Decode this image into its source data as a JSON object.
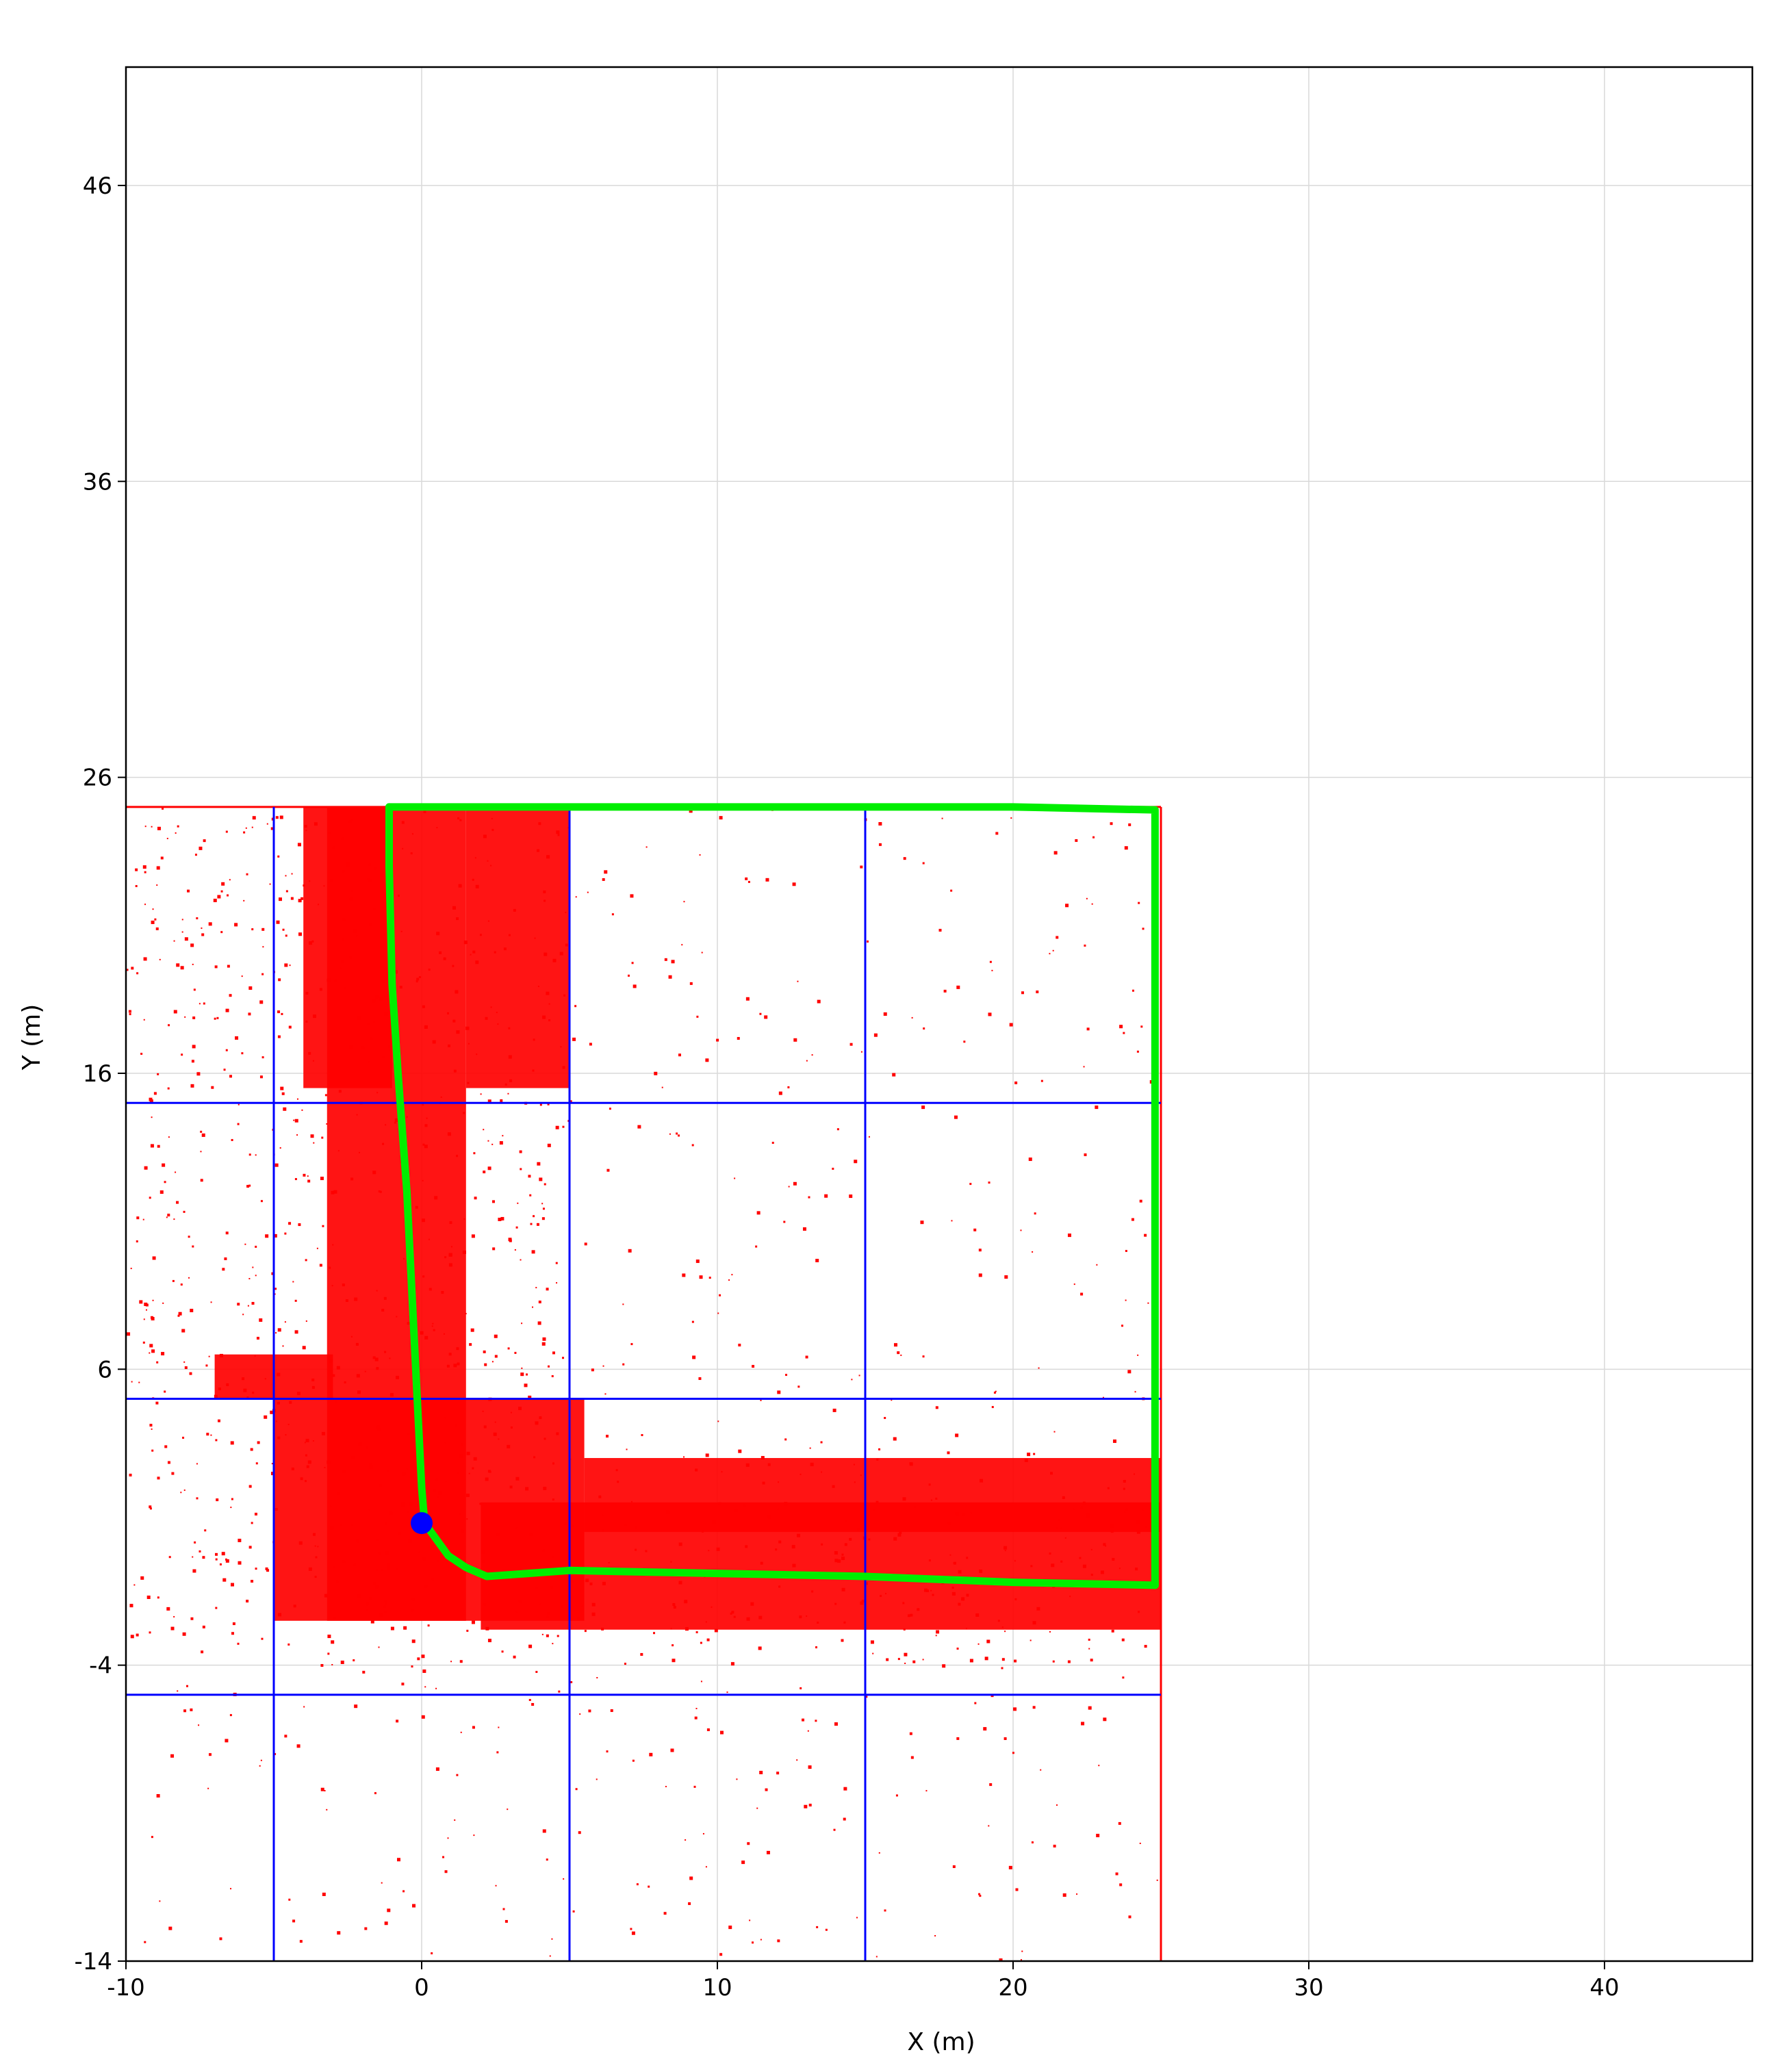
{
  "chart_data": {
    "type": "scatter",
    "title": "",
    "xlabel": "X (m)",
    "ylabel": "Y (m)",
    "xlim": [
      -10,
      45
    ],
    "ylim": [
      -14,
      50
    ],
    "xticks": [
      -10,
      0,
      10,
      20,
      30,
      40
    ],
    "yticks": [
      -14,
      -4,
      6,
      16,
      26,
      36,
      46
    ],
    "grid": true,
    "colors": {
      "obstacle": "#ff0000",
      "trajectory": "#00ee00",
      "tile_grid": "#0000ff",
      "robot": "#0000ff",
      "background_grid": "#d9d9d9"
    },
    "tile_grid_lines": {
      "x": [
        -5,
        5,
        15
      ],
      "y": [
        -5,
        5,
        15
      ],
      "x_extent": [
        -10,
        25
      ],
      "y_extent": [
        -14,
        25
      ]
    },
    "obstacle_regions": [
      {
        "x": [
          -3.2,
          1.5
        ],
        "y": [
          -2.5,
          25
        ]
      },
      {
        "x": [
          -5,
          5.5
        ],
        "y": [
          -2.5,
          5
        ]
      },
      {
        "x": [
          2,
          25
        ],
        "y": [
          -2.8,
          1.5
        ]
      },
      {
        "x": [
          5.5,
          25
        ],
        "y": [
          0.5,
          3
        ]
      },
      {
        "x": [
          1.5,
          5
        ],
        "y": [
          15.5,
          25
        ]
      },
      {
        "x": [
          -4,
          -1
        ],
        "y": [
          15.5,
          25
        ]
      },
      {
        "x": [
          -7,
          -3
        ],
        "y": [
          5,
          6.5
        ]
      }
    ],
    "trajectory": [
      {
        "x": [
          0.1,
          0.9,
          1.5,
          2.2,
          5,
          10,
          15,
          20,
          24.8
        ],
        "y": [
          0.8,
          -0.3,
          -0.7,
          -1,
          -0.8,
          -0.9,
          -1,
          -1.2,
          -1.3
        ]
      },
      {
        "x": [
          0.1,
          0,
          -0.1,
          -0.3,
          -0.5,
          -0.8,
          -1,
          -1.1,
          -1.1
        ],
        "y": [
          0.8,
          2,
          4,
          8,
          12,
          16,
          19,
          23,
          25
        ]
      },
      {
        "x": [
          -1.1,
          5,
          10,
          15,
          20,
          24.8,
          24.8,
          24.8,
          24.8
        ],
        "y": [
          25,
          25,
          25,
          25,
          25,
          24.9,
          15,
          5,
          -1.3
        ]
      }
    ],
    "robot_position": {
      "x": 0,
      "y": 0.8
    }
  }
}
